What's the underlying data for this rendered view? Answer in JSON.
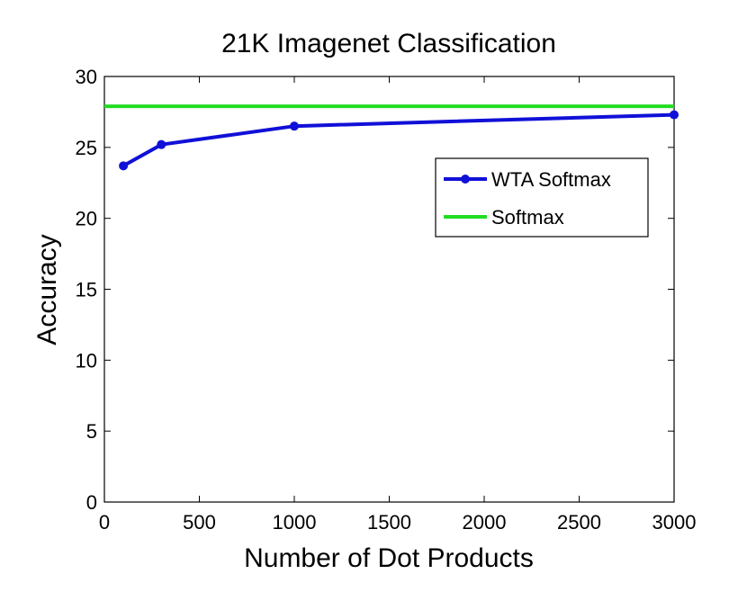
{
  "chart_data": {
    "type": "line",
    "title": "21K Imagenet Classification",
    "xlabel": "Number of Dot Products",
    "ylabel": "Accuracy",
    "xlim": [
      0,
      3000
    ],
    "ylim": [
      0,
      30
    ],
    "x_ticks": [
      0,
      500,
      1000,
      1500,
      2000,
      2500,
      3000
    ],
    "y_ticks": [
      0,
      5,
      10,
      15,
      20,
      25,
      30
    ],
    "x_tick_labels": [
      "0",
      "500",
      "1000",
      "1500",
      "2000",
      "2500",
      "3000"
    ],
    "y_tick_labels": [
      "0",
      "5",
      "10",
      "15",
      "20",
      "25",
      "30"
    ],
    "grid": false,
    "legend_position": "upper-right",
    "series": [
      {
        "name": "WTA Softmax",
        "color": "#1010d8",
        "marker": "circle",
        "x": [
          100,
          300,
          1000,
          3000
        ],
        "y": [
          23.7,
          25.2,
          26.5,
          27.3
        ]
      },
      {
        "name": "Softmax",
        "color": "#22dd22",
        "marker": "none",
        "x": [
          0,
          3000
        ],
        "y": [
          27.9,
          27.9
        ]
      }
    ]
  }
}
